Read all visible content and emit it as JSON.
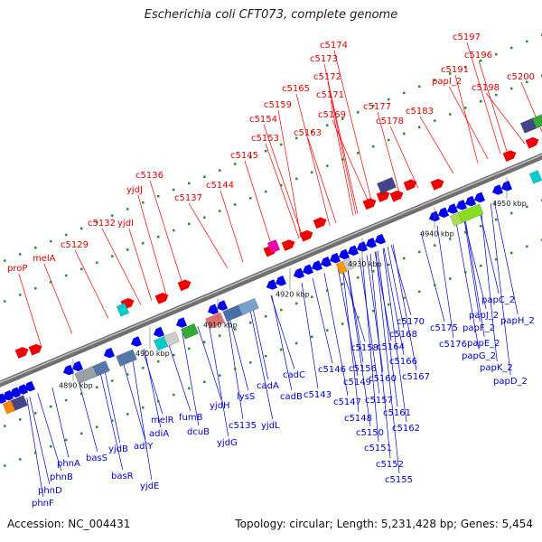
{
  "title": "Escherichia coli CFT073, complete genome",
  "footer": {
    "accession": "Accession: NC_004431",
    "summary": "Topology: circular; Length: 5,231,428 bp; Genes: 5,454"
  },
  "colors": {
    "forward_gene": "#ee0000",
    "reverse_gene": "#0000ee",
    "backbone": "#808080",
    "top_label": "#dd0000",
    "bottom_label": "#0000cc"
  },
  "ticks": [
    "4890 kbp",
    "4900 kbp",
    "4910 kbp",
    "4920 kbp",
    "4930 kbp",
    "4940 kbp",
    "4950 kbp"
  ],
  "top_labels": [
    "proP",
    "melA",
    "c5129",
    "c5132",
    "yjdI",
    "yjdJ",
    "c5136",
    "c5137",
    "c5144",
    "c5145",
    "c5153",
    "c5154",
    "c5159",
    "c5163",
    "c5165",
    "c5169",
    "c5171",
    "c5172",
    "c5173",
    "c5174",
    "c5177",
    "c5178",
    "c5183",
    "papI_2",
    "c5191",
    "c5196",
    "c5197",
    "c5198",
    "c5200"
  ],
  "bottom_labels": [
    "phnF",
    "phnD",
    "phnB",
    "phnA",
    "basS",
    "basR",
    "yjdB",
    "yjdE",
    "adiY",
    "adiA",
    "melR",
    "fumB",
    "dcuB",
    "yjdG",
    "yjdH",
    "c5135",
    "lysS",
    "yjdL",
    "cadA",
    "cadB",
    "cadC",
    "c5143",
    "c5146",
    "c5147",
    "c5148",
    "c5149",
    "c5150",
    "c5151",
    "c5152",
    "c5155",
    "c5156",
    "c5157",
    "c5158",
    "c5160",
    "c5161",
    "c5162",
    "c5164",
    "c5166",
    "c5167",
    "c5168",
    "c5170",
    "c5175",
    "c5176",
    "papC_2",
    "papJ_2",
    "papF_2",
    "papE_2",
    "papG_2",
    "papK_2",
    "papD_2",
    "papH_2"
  ]
}
